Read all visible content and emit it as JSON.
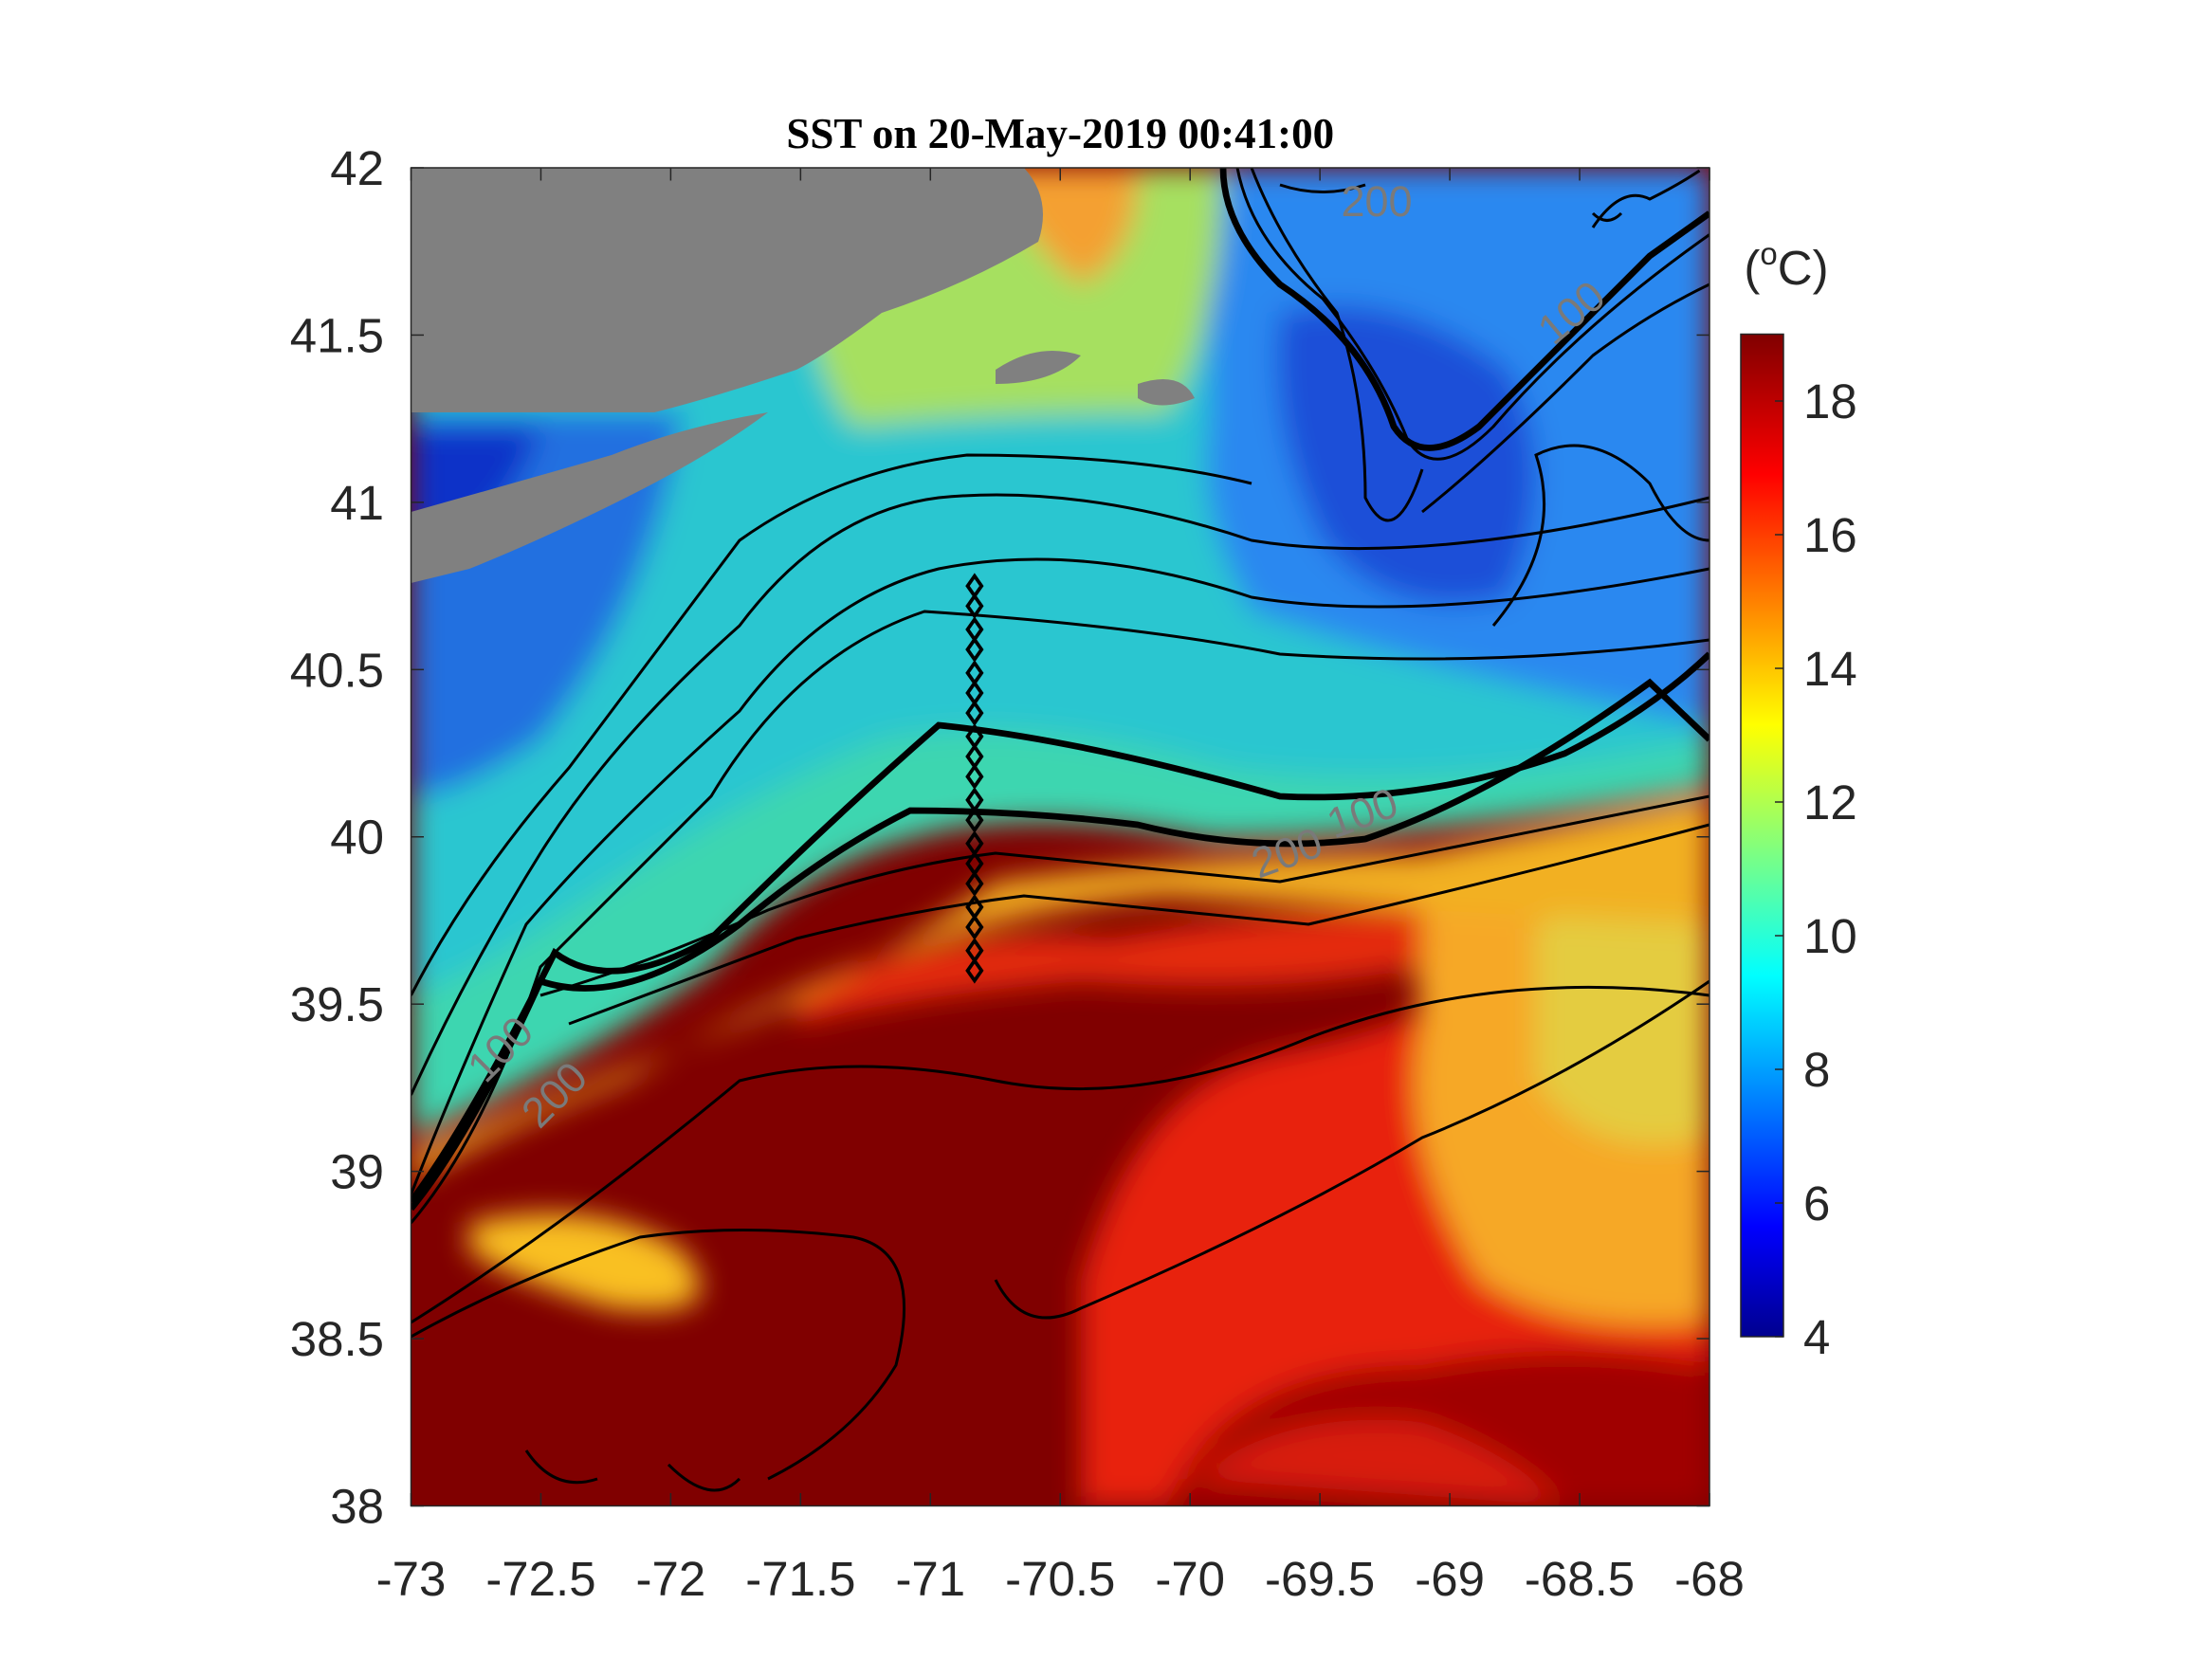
{
  "chart_data": {
    "type": "contour-map",
    "title": "SST on 20-May-2019 00:41:00",
    "xlim": [
      -73,
      -68
    ],
    "xticks": [
      -73,
      -72.5,
      -72,
      -71.5,
      -71,
      -70.5,
      -70,
      -69.5,
      -69,
      -68.5,
      -68
    ],
    "ylim": [
      38,
      42
    ],
    "yticks": [
      38,
      38.5,
      39,
      39.5,
      40,
      40.5,
      41,
      41.5,
      42
    ],
    "colorbar": {
      "label_parts": [
        "(",
        "o",
        "C)"
      ],
      "clim": [
        4,
        19
      ],
      "ticks": [
        4,
        6,
        8,
        10,
        12,
        14,
        16,
        18
      ],
      "colormap": "jet"
    },
    "contour_labels": [
      "200",
      "100",
      "100",
      "200",
      "100",
      "200"
    ],
    "stations": {
      "lon": [
        -70.83,
        -70.83,
        -70.83,
        -70.83,
        -70.83,
        -70.83,
        -70.83,
        -70.83,
        -70.83,
        -70.83,
        -70.83,
        -70.83,
        -70.83,
        -70.83,
        -70.83,
        -70.83,
        -70.83,
        -70.83,
        -70.83
      ],
      "lat": [
        39.6,
        39.66,
        39.73,
        39.79,
        39.86,
        39.92,
        39.98,
        40.05,
        40.11,
        40.18,
        40.24,
        40.3,
        40.37,
        40.43,
        40.49,
        40.56,
        40.62,
        40.69,
        40.75
      ]
    }
  }
}
